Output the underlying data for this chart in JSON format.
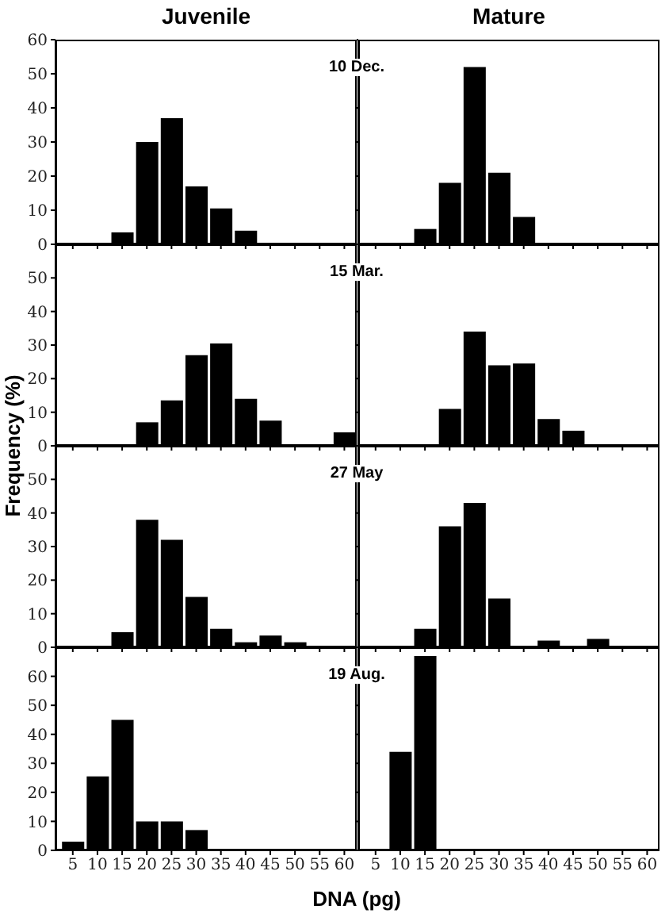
{
  "chart_data": [
    {
      "type": "histogram",
      "title": "Juvenile",
      "annotations": [
        "10 Dec."
      ],
      "bins": [
        2.5,
        7.5,
        12.5,
        17.5,
        22.5,
        27.5,
        32.5,
        37.5,
        42.5,
        47.5,
        52.5,
        57.5,
        62.5
      ],
      "values": [
        0,
        0,
        3.5,
        30,
        37,
        17,
        10.5,
        4,
        0,
        0,
        0,
        0
      ],
      "color": "#000000",
      "xlim": [
        1.5,
        62.5
      ],
      "xticks": [
        5,
        10,
        15,
        20,
        25,
        30,
        35,
        40,
        45,
        50,
        55,
        60
      ],
      "ylim": [
        0,
        60
      ],
      "yticks": [
        0,
        10,
        20,
        30,
        40,
        50,
        60
      ],
      "tick_labels": "y"
    },
    {
      "type": "histogram",
      "title": "Mature",
      "bins": [
        2.5,
        7.5,
        12.5,
        17.5,
        22.5,
        27.5,
        32.5,
        37.5,
        42.5,
        47.5,
        52.5,
        57.5,
        62.5
      ],
      "values": [
        0,
        0,
        4.5,
        18,
        52,
        21,
        8,
        0,
        0,
        0,
        0,
        0
      ],
      "color": "#000000",
      "xlim": [
        1.5,
        62.5
      ],
      "xticks": [
        5,
        10,
        15,
        20,
        25,
        30,
        35,
        40,
        45,
        50,
        55,
        60
      ],
      "ylim": [
        0,
        60
      ],
      "yticks": [
        0,
        10,
        20,
        30,
        40,
        50,
        60
      ],
      "tick_labels": false
    },
    {
      "type": "histogram",
      "ylabel": "Frequency (%)",
      "annotations": [
        "15 Mar."
      ],
      "bins": [
        2.5,
        7.5,
        12.5,
        17.5,
        22.5,
        27.5,
        32.5,
        37.5,
        42.5,
        47.5,
        52.5,
        57.5,
        62.5
      ],
      "values": [
        0,
        0,
        0,
        7,
        13.5,
        27,
        30.5,
        14,
        7.5,
        0,
        0,
        4
      ],
      "color": "#000000",
      "xlim": [
        1.5,
        62.5
      ],
      "xticks": [
        5,
        10,
        15,
        20,
        25,
        30,
        35,
        40,
        45,
        50,
        55,
        60
      ],
      "ylim": [
        0,
        60
      ],
      "yticks": [
        0,
        10,
        20,
        30,
        40,
        50
      ],
      "tick_labels": "y"
    },
    {
      "type": "histogram",
      "bins": [
        2.5,
        7.5,
        12.5,
        17.5,
        22.5,
        27.5,
        32.5,
        37.5,
        42.5,
        47.5,
        52.5,
        57.5,
        62.5
      ],
      "values": [
        0,
        0,
        0,
        11,
        34,
        24,
        24.5,
        8,
        4.5,
        0,
        0,
        0
      ],
      "color": "#000000",
      "xlim": [
        1.5,
        62.5
      ],
      "xticks": [
        5,
        10,
        15,
        20,
        25,
        30,
        35,
        40,
        45,
        50,
        55,
        60
      ],
      "ylim": [
        0,
        60
      ],
      "yticks": [
        0,
        10,
        20,
        30,
        40,
        50
      ],
      "tick_labels": false
    },
    {
      "type": "histogram",
      "annotations": [
        "27 May"
      ],
      "bins": [
        2.5,
        7.5,
        12.5,
        17.5,
        22.5,
        27.5,
        32.5,
        37.5,
        42.5,
        47.5,
        52.5,
        57.5,
        62.5
      ],
      "values": [
        0,
        0,
        4.5,
        38,
        32,
        15,
        5.5,
        1.5,
        3.5,
        1.5,
        0,
        0
      ],
      "color": "#000000",
      "xlim": [
        1.5,
        62.5
      ],
      "xticks": [
        5,
        10,
        15,
        20,
        25,
        30,
        35,
        40,
        45,
        50,
        55,
        60
      ],
      "ylim": [
        0,
        60
      ],
      "yticks": [
        0,
        10,
        20,
        30,
        40,
        50
      ],
      "tick_labels": "y"
    },
    {
      "type": "histogram",
      "bins": [
        2.5,
        7.5,
        12.5,
        17.5,
        22.5,
        27.5,
        32.5,
        37.5,
        42.5,
        47.5,
        52.5,
        57.5,
        62.5
      ],
      "values": [
        0,
        0,
        5.5,
        36,
        43,
        14.5,
        0,
        2,
        0,
        2.5,
        0,
        0
      ],
      "color": "#000000",
      "xlim": [
        1.5,
        62.5
      ],
      "xticks": [
        5,
        10,
        15,
        20,
        25,
        30,
        35,
        40,
        45,
        50,
        55,
        60
      ],
      "ylim": [
        0,
        60
      ],
      "yticks": [
        0,
        10,
        20,
        30,
        40,
        50
      ],
      "tick_labels": false
    },
    {
      "type": "histogram",
      "xlabel": "DNA (pg)",
      "annotations": [
        "19 Aug."
      ],
      "bins": [
        2.5,
        7.5,
        12.5,
        17.5,
        22.5,
        27.5,
        32.5,
        37.5,
        42.5,
        47.5,
        52.5,
        57.5,
        62.5
      ],
      "values": [
        3,
        25.5,
        45,
        10,
        10,
        7,
        0,
        0,
        0,
        0,
        0,
        0
      ],
      "color": "#000000",
      "xlim": [
        1.5,
        62.5
      ],
      "xticks": [
        5,
        10,
        15,
        20,
        25,
        30,
        35,
        40,
        45,
        50,
        55,
        60
      ],
      "ylim": [
        0,
        70
      ],
      "yticks": [
        0,
        10,
        20,
        30,
        40,
        50,
        60
      ]
    },
    {
      "type": "histogram",
      "bins": [
        2.5,
        7.5,
        12.5,
        17.5,
        22.5,
        27.5,
        32.5,
        37.5,
        42.5,
        47.5,
        52.5,
        57.5,
        62.5
      ],
      "values": [
        0,
        34,
        67,
        0,
        0,
        0,
        0,
        0,
        0,
        0,
        0,
        0
      ],
      "color": "#000000",
      "xlim": [
        1.5,
        62.5
      ],
      "xticks": [
        5,
        10,
        15,
        20,
        25,
        30,
        35,
        40,
        45,
        50,
        55,
        60
      ],
      "ylim": [
        0,
        70
      ],
      "yticks": [
        0,
        10,
        20,
        30,
        40,
        50,
        60
      ],
      "tick_labels": "x"
    }
  ]
}
